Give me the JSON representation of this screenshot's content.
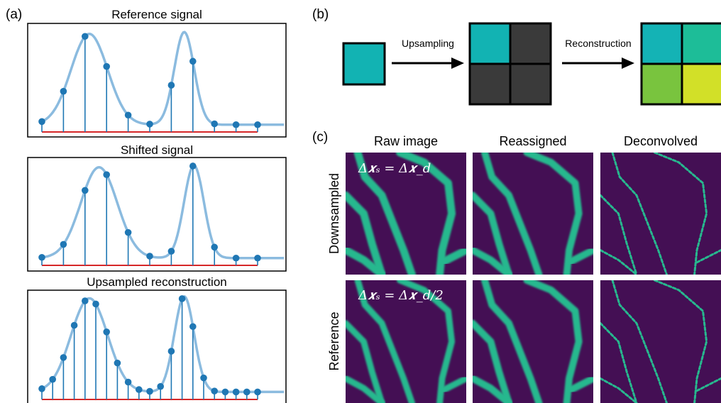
{
  "panels": {
    "a": {
      "label": "(a)",
      "plots": [
        {
          "title": "Reference signal"
        },
        {
          "title": "Shifted signal"
        },
        {
          "title": "Upsampled reconstruction"
        }
      ]
    },
    "b": {
      "label": "(b)",
      "step1": "Upsampling",
      "step2": "Reconstruction",
      "colors": {
        "input": "#12b3b3",
        "upsampled": [
          "#12b3b3",
          "#3a3a3a",
          "#3a3a3a",
          "#3a3a3a"
        ],
        "reconstructed": [
          "#14b3b5",
          "#1dbd98",
          "#79c43e",
          "#d2e028"
        ]
      }
    },
    "c": {
      "label": "(c)",
      "col_headers": [
        "Raw image",
        "Reassigned",
        "Deconvolved"
      ],
      "row_headers": [
        "Downsampled",
        "Reference"
      ],
      "annotations": [
        "Δ𝒙ₛ = Δ𝒙_d",
        "Δ𝒙ₛ = Δ𝒙_d/2"
      ]
    }
  },
  "colors": {
    "curve": "#8bbbdf",
    "stem": "#1f77b4",
    "baseline": "#d62728",
    "image_bg": "#440f54",
    "image_ridge": "#27b88e"
  }
}
